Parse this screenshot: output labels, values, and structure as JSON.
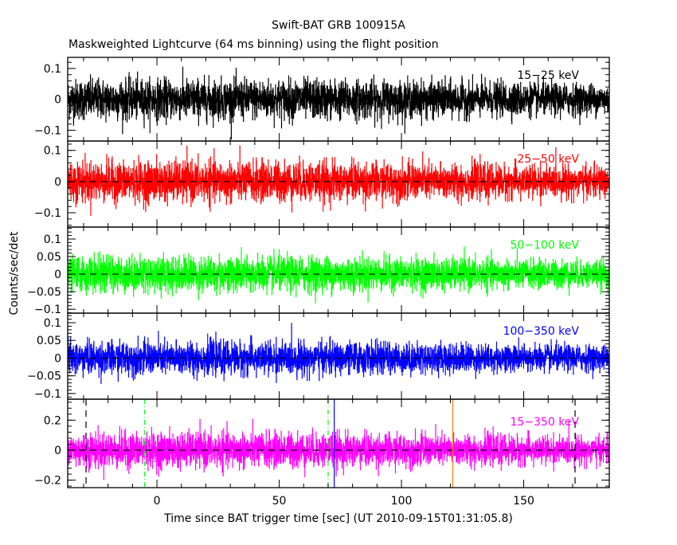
{
  "chart_data": {
    "type": "line",
    "title": "Swift-BAT GRB 100915A",
    "subtitle": "Maskweighted Lightcurve (64 ms binning) using the flight position",
    "xlabel": "Time since BAT trigger time [sec] (UT 2010-09-15T01:31:05.8)",
    "ylabel": "Counts/sec/det",
    "xlim": [
      -36.5,
      185
    ],
    "x_ticks": [
      "0",
      "50",
      "100",
      "150"
    ],
    "x_tick_values": [
      0,
      50,
      100,
      150
    ],
    "bin_seconds": 0.064,
    "grid": false,
    "panels": [
      {
        "name": "15-25 keV",
        "label": "15−25 keV",
        "color": "#000000",
        "ylim": [
          -0.135,
          0.136
        ],
        "y_ticks": [
          "0.1",
          "0",
          "−0.1"
        ],
        "y_tick_values": [
          0.1,
          0,
          -0.1
        ],
        "noise_rms": 0.032,
        "zero_line": false
      },
      {
        "name": "25-50 keV",
        "label": "25−50 keV",
        "color": "#ff0000",
        "ylim": [
          -0.146,
          0.13
        ],
        "y_ticks": [
          "0.1",
          "0",
          "−0.1"
        ],
        "y_tick_values": [
          0.1,
          0,
          -0.1
        ],
        "noise_rms": 0.032,
        "zero_line": true
      },
      {
        "name": "50-100 keV",
        "label": "50−100 keV",
        "color": "#00ff00",
        "ylim": [
          -0.111,
          0.134
        ],
        "y_ticks": [
          "0.1",
          "0.05",
          "0",
          "−0.05",
          "−0.1"
        ],
        "y_tick_values": [
          0.1,
          0.05,
          0,
          -0.05,
          -0.1
        ],
        "noise_rms": 0.025,
        "zero_line": true
      },
      {
        "name": "100-350 keV",
        "label": "100−350 keV",
        "color": "#0000ff",
        "ylim": [
          -0.116,
          0.127
        ],
        "y_ticks": [
          "0.1",
          "0.05",
          "0",
          "−0.05",
          "−0.1"
        ],
        "y_tick_values": [
          0.1,
          0.05,
          0,
          -0.05,
          -0.1
        ],
        "noise_rms": 0.023,
        "zero_line": true
      },
      {
        "name": "15-350 keV",
        "label": "15−350 keV",
        "color": "#ff00ff",
        "ylim": [
          -0.25,
          0.34
        ],
        "y_ticks": [
          "0.2",
          "0",
          "−0.2"
        ],
        "y_tick_values": [
          0.2,
          0,
          -0.2
        ],
        "noise_rms": 0.058,
        "zero_line": true
      }
    ],
    "vertical_markers": [
      {
        "x": -29,
        "style": "dashed",
        "color": "#000000"
      },
      {
        "x": 171,
        "style": "dashed",
        "color": "#000000"
      },
      {
        "x": -5,
        "style": "dash-dot",
        "color": "#00ff00"
      },
      {
        "x": 70,
        "style": "dash-dot",
        "color": "#00ff00"
      },
      {
        "x": 72.5,
        "style": "solid",
        "color": "#0000ff"
      },
      {
        "x": 121,
        "style": "solid",
        "color": "#ff8000"
      }
    ]
  }
}
